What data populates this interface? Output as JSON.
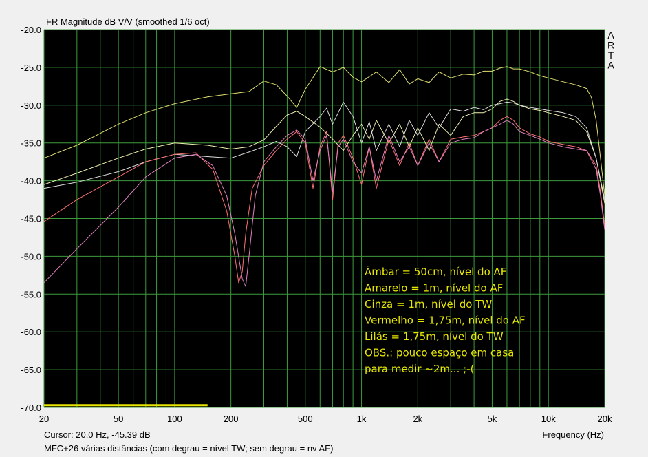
{
  "chart_data": {
    "type": "line",
    "title": "FR Magnitude dB V/V (smoothed 1/6 oct)",
    "xlabel": "Frequency (Hz)",
    "ylabel": "",
    "x_scale": "log",
    "xlim": [
      20,
      20000
    ],
    "ylim": [
      -70,
      -20
    ],
    "x_ticks": [
      20,
      50,
      100,
      200,
      500,
      1000,
      2000,
      5000,
      10000,
      20000
    ],
    "x_tick_labels": [
      "20",
      "50",
      "100",
      "200",
      "500",
      "1k",
      "2k",
      "5k",
      "10k",
      "20k"
    ],
    "y_ticks": [
      -20,
      -25,
      -30,
      -35,
      -40,
      -45,
      -50,
      -55,
      -60,
      -65,
      -70
    ],
    "y_tick_labels": [
      "-20.0",
      "-25.0",
      "-30.0",
      "-35.0",
      "-40.0",
      "-45.0",
      "-50.0",
      "-55.0",
      "-60.0",
      "-65.0",
      "-70.0"
    ],
    "grid": true,
    "background": "#000000",
    "grid_color": "#3c9a3c",
    "cursor_readout": "Cursor: 20.0 Hz, -45.39 dB",
    "footer": "MFC+26 várias distâncias (com degrau = nível TW; sem degrau = nv AF)",
    "watermark": [
      "A",
      "R",
      "T",
      "A"
    ],
    "annotations": [
      "Âmbar = 50cm, nível do AF",
      "Amarelo = 1m, nível do AF",
      "Cinza = 1m, nível do TW",
      "Vermelho = 1,75m, nível do AF",
      "Lilás = 1,75m, nível do TW",
      "OBS.: pouco espaço em casa",
      "para medir ~2m... ;-("
    ],
    "annotation_color": "#e6e600",
    "series": [
      {
        "color": "#e0e070",
        "x": [
          20,
          30,
          50,
          70,
          100,
          150,
          200,
          250,
          300,
          350,
          400,
          450,
          500,
          600,
          700,
          800,
          900,
          1000,
          1200,
          1400,
          1600,
          1800,
          2000,
          2300,
          2600,
          3000,
          3500,
          4000,
          4500,
          5000,
          5500,
          6000,
          6500,
          7000,
          8000,
          9000,
          10000,
          12000,
          14000,
          16000,
          17000,
          18000,
          19000,
          20000
        ],
        "y": [
          -37,
          -35.3,
          -32.5,
          -31,
          -29.8,
          -28.9,
          -28.5,
          -28.2,
          -26.8,
          -27.3,
          -28.8,
          -30.3,
          -27.9,
          -24.9,
          -25.6,
          -25,
          -26.3,
          -26.9,
          -25.6,
          -27,
          -25.3,
          -27.2,
          -26.5,
          -27,
          -25.6,
          -26.4,
          -25.9,
          -26,
          -25.5,
          -25.5,
          -25.1,
          -24.9,
          -25.2,
          -25.2,
          -25.6,
          -26.1,
          -26.4,
          -26.9,
          -27.3,
          -27.8,
          -29,
          -32,
          -37,
          -42
        ]
      },
      {
        "color": "#f0f0b0",
        "x": [
          20,
          30,
          50,
          70,
          100,
          150,
          200,
          250,
          300,
          350,
          400,
          450,
          500,
          600,
          700,
          800,
          900,
          1000,
          1100,
          1200,
          1400,
          1600,
          1800,
          2000,
          2300,
          2600,
          3000,
          3500,
          4000,
          4500,
          5000,
          5500,
          6000,
          6500,
          7000,
          8000,
          9000,
          10000,
          12000,
          14000,
          16000,
          18000,
          20000
        ],
        "y": [
          -40.5,
          -39,
          -37,
          -35.8,
          -35,
          -35.3,
          -35.8,
          -35.5,
          -34.6,
          -32.8,
          -31.3,
          -30.8,
          -31.5,
          -32.9,
          -34.5,
          -36,
          -34,
          -32.5,
          -34.5,
          -32,
          -35,
          -32.5,
          -35.5,
          -33,
          -36,
          -32.5,
          -34,
          -31.5,
          -31,
          -31,
          -30.5,
          -29.5,
          -29.2,
          -29.5,
          -30,
          -30.5,
          -30.7,
          -31,
          -31.5,
          -32,
          -33.5,
          -37,
          -43
        ]
      },
      {
        "color": "#dcdcdc",
        "x": [
          20,
          30,
          50,
          70,
          100,
          150,
          200,
          250,
          300,
          350,
          400,
          450,
          500,
          600,
          650,
          700,
          800,
          900,
          1000,
          1100,
          1200,
          1400,
          1600,
          1800,
          2000,
          2300,
          2600,
          3000,
          3500,
          4000,
          4500,
          5000,
          5500,
          6000,
          6500,
          7000,
          8000,
          9000,
          10000,
          12000,
          14000,
          16000,
          18000,
          20000
        ],
        "y": [
          -41,
          -40.2,
          -38.8,
          -37.5,
          -36.5,
          -36.8,
          -37,
          -36.2,
          -35.5,
          -34.8,
          -35.5,
          -36.8,
          -33.5,
          -31.5,
          -30.4,
          -32.5,
          -29.6,
          -31.5,
          -35,
          -32.2,
          -36,
          -32.5,
          -35.5,
          -32,
          -34,
          -31,
          -33,
          -30.5,
          -30.8,
          -30.3,
          -30.6,
          -30,
          -29.8,
          -29.6,
          -29.7,
          -30,
          -30.3,
          -30.5,
          -30.7,
          -31,
          -31.5,
          -33,
          -37,
          -42.5
        ]
      },
      {
        "color": "#ff7070",
        "x": [
          20,
          30,
          50,
          70,
          100,
          130,
          160,
          190,
          210,
          220,
          230,
          240,
          260,
          300,
          350,
          400,
          450,
          500,
          550,
          600,
          650,
          700,
          750,
          800,
          900,
          1000,
          1100,
          1200,
          1400,
          1600,
          1800,
          2000,
          2300,
          2600,
          3000,
          3500,
          4000,
          4500,
          5000,
          5500,
          6000,
          6500,
          7000,
          8000,
          9000,
          10000,
          12000,
          14000,
          16000,
          18000,
          19000,
          20000
        ],
        "y": [
          -45.4,
          -42.5,
          -39.5,
          -37.5,
          -36.5,
          -36.3,
          -38.5,
          -44,
          -50,
          -53.5,
          -52,
          -47,
          -41,
          -38,
          -36,
          -34.5,
          -33.5,
          -35,
          -41,
          -35.5,
          -33.5,
          -42.5,
          -35,
          -34,
          -37,
          -40.5,
          -35.5,
          -41,
          -34.5,
          -38,
          -35,
          -38,
          -34.5,
          -37.5,
          -34.5,
          -34.2,
          -34,
          -33.5,
          -33,
          -32,
          -31.5,
          -32,
          -33,
          -33.8,
          -34.2,
          -34.8,
          -35.2,
          -35.5,
          -36,
          -38,
          -41.5,
          -46
        ]
      },
      {
        "color": "#e080c0",
        "x": [
          20,
          30,
          50,
          70,
          100,
          130,
          160,
          190,
          210,
          230,
          240,
          250,
          270,
          300,
          350,
          400,
          450,
          500,
          550,
          600,
          650,
          700,
          750,
          800,
          900,
          1000,
          1100,
          1200,
          1400,
          1600,
          1800,
          2000,
          2300,
          2600,
          3000,
          3500,
          4000,
          4500,
          5000,
          5500,
          6000,
          6500,
          7000,
          8000,
          9000,
          10000,
          12000,
          14000,
          16000,
          18000,
          19000,
          20000
        ],
        "y": [
          -53.5,
          -49,
          -43.5,
          -39.5,
          -37,
          -36.5,
          -38,
          -42,
          -47,
          -53,
          -54,
          -50,
          -42,
          -37.5,
          -35.5,
          -34,
          -33.3,
          -34.5,
          -40,
          -36,
          -34,
          -41.5,
          -35.5,
          -34.5,
          -37.5,
          -39,
          -35.5,
          -40,
          -34,
          -37.5,
          -35.5,
          -38,
          -35,
          -37.5,
          -35,
          -34.5,
          -34.3,
          -33.5,
          -33,
          -32.5,
          -32,
          -32.5,
          -33.5,
          -34,
          -34.5,
          -35,
          -35.5,
          -35.8,
          -36,
          -38.5,
          -42,
          -46.5
        ]
      }
    ],
    "legend_bar": {
      "x_range": [
        20,
        150
      ],
      "y": -69.7,
      "color": "#e6e600"
    }
  }
}
